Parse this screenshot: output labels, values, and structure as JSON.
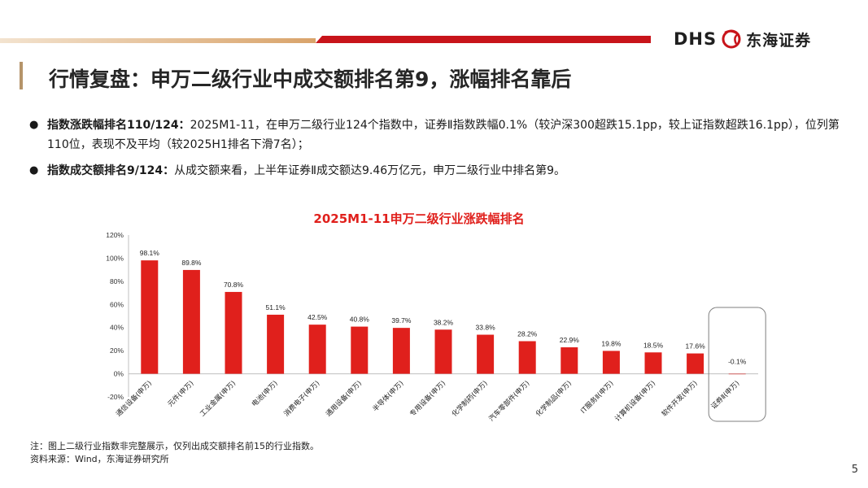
{
  "header": {
    "logo_text": "DHS",
    "logo_cn": "东海证券"
  },
  "title": "行情复盘：申万二级行业中成交额排名第9，涨幅排名靠后",
  "bullets": [
    {
      "bold": "指数涨跌幅排名110/124：",
      "text": "2025M1-11，在申万二级行业124个指数中，证券Ⅱ指数跌幅0.1%（较沪深300超跌15.1pp，较上证指数超跌16.1pp），位列第110位，表现不及平均（较2025H1排名下滑7名）；"
    },
    {
      "bold": "指数成交额排名9/124：",
      "text": "从成交额来看，上半年证券Ⅱ成交额达9.46万亿元，申万二级行业中排名第9。"
    }
  ],
  "chart_data": {
    "type": "bar",
    "title": "2025M1-11申万二级行业涨跌幅排名",
    "categories": [
      "通信设备(申万)",
      "元件(申万)",
      "工业金属(申万)",
      "电池(申万)",
      "消费电子(申万)",
      "通用设备(申万)",
      "半导体(申万)",
      "专用设备(申万)",
      "化学制药(申万)",
      "汽车零部件(申万)",
      "化学制品(申万)",
      "IT服务Ⅱ(申万)",
      "计算机设备(申万)",
      "软件开发(申万)",
      "证券Ⅱ(申万)"
    ],
    "values": [
      98.1,
      89.8,
      70.8,
      51.1,
      42.5,
      40.8,
      39.7,
      38.2,
      33.8,
      28.2,
      22.9,
      19.8,
      18.5,
      17.6,
      -0.1
    ],
    "data_labels": [
      "98.1%",
      "89.8%",
      "70.8%",
      "51.1%",
      "42.5%",
      "40.8%",
      "39.7%",
      "38.2%",
      "33.8%",
      "28.2%",
      "22.9%",
      "19.8%",
      "18.5%",
      "17.6%",
      "-0.1%"
    ],
    "ylim": [
      -20,
      120
    ],
    "yticks": [
      "-20%",
      "0%",
      "20%",
      "40%",
      "60%",
      "80%",
      "100%",
      "120%"
    ],
    "highlight_index": 14,
    "bar_color": "#e0201c",
    "title_color": "#e0201c",
    "grid": false
  },
  "notes": {
    "line1": "注：图上二级行业指数非完整展示，仅列出成交额排名前15的行业指数。",
    "line2": "资料来源：Wind，东海证券研究所"
  },
  "page_number": "5"
}
